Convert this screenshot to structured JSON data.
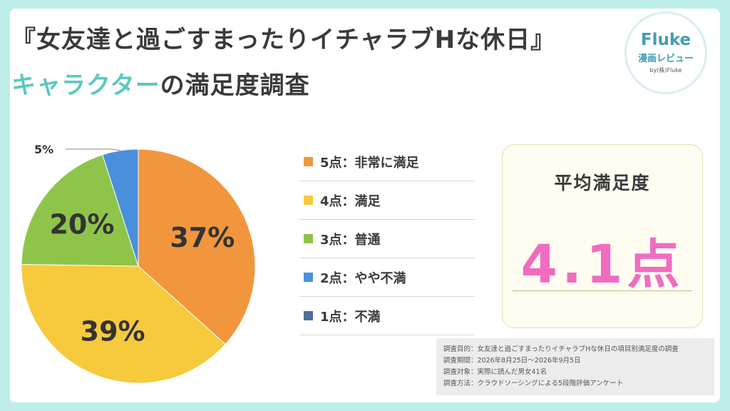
{
  "header": {
    "title_line1": "『女友達と過ごすまったりイチャラブHな休日』",
    "title_line2_accent": "キャラクター",
    "title_line2_rest": "の満足度調査"
  },
  "logo": {
    "name": "Fluke",
    "subtitle": "漫画レビュー",
    "byline": "by(株)Fluke"
  },
  "chart_data": {
    "type": "pie",
    "categories": [
      "5点：非常に満足",
      "4点：満足",
      "3点：普通",
      "2点：やや不満",
      "1点：不満"
    ],
    "values": [
      37,
      39,
      20,
      5,
      0
    ],
    "labels": [
      "37%",
      "39%",
      "20%",
      "5%",
      ""
    ],
    "colors": [
      "#f2963d",
      "#f7c93d",
      "#8fc44a",
      "#4a8fdc",
      "#4f6f9f"
    ],
    "legend_placement": "right"
  },
  "average": {
    "title": "平均満足度",
    "value": "4.1点"
  },
  "notes": [
    "調査目的：女友達と過ごすまったりイチャラブHな休日の項目別満足度の調査",
    "調査期間：2026年8月25日～2026年9月5日",
    "調査対象：実際に読んだ男女41名",
    "調査方法：クラウドソーシングによる5段階評価アンケート"
  ]
}
